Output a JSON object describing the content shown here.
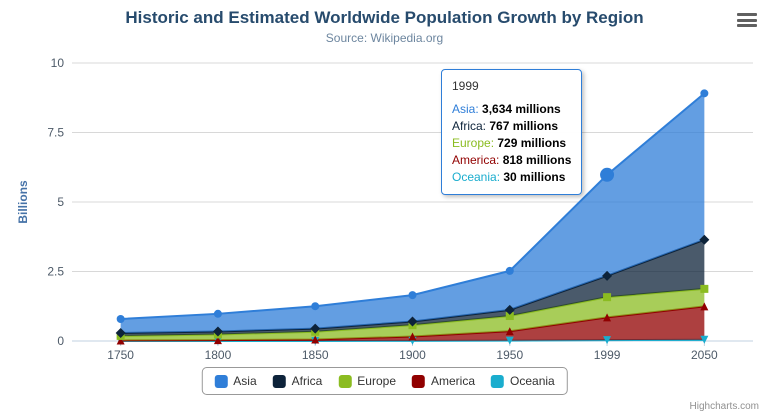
{
  "chart": {
    "title": "Historic and Estimated Worldwide Population Growth by Region",
    "subtitle": "Source: Wikipedia.org",
    "y_axis_title": "Billions",
    "credits": "Highcharts.com",
    "context_menu_icon": "hamburger-icon"
  },
  "tooltip": {
    "header": "1999",
    "rows": [
      {
        "name": "Asia",
        "value": "3,634 millions",
        "color": "#2f7ed8"
      },
      {
        "name": "Africa",
        "value": "767 millions",
        "color": "#0d233a"
      },
      {
        "name": "Europe",
        "value": "729 millions",
        "color": "#8bbc21"
      },
      {
        "name": "America",
        "value": "818 millions",
        "color": "#910000"
      },
      {
        "name": "Oceania",
        "value": "30 millions",
        "color": "#1aadce"
      }
    ]
  },
  "chart_data": {
    "type": "area",
    "stacked": true,
    "title": "Historic and Estimated Worldwide Population Growth by Region",
    "subtitle": "Source: Wikipedia.org",
    "xlabel": "",
    "ylabel": "Billions",
    "unit": "millions",
    "ylim": [
      0,
      10
    ],
    "y_ticks": [
      0,
      2.5,
      5,
      7.5,
      10
    ],
    "grid": true,
    "legend_position": "bottom",
    "categories": [
      "1750",
      "1800",
      "1850",
      "1900",
      "1950",
      "1999",
      "2050"
    ],
    "series": [
      {
        "name": "Asia",
        "color": "#2f7ed8",
        "marker": "circle",
        "values": [
          502,
          635,
          809,
          947,
          1402,
          3634,
          5268
        ]
      },
      {
        "name": "Africa",
        "color": "#0d233a",
        "marker": "diamond",
        "values": [
          106,
          107,
          111,
          133,
          221,
          767,
          1766
        ]
      },
      {
        "name": "Europe",
        "color": "#8bbc21",
        "marker": "square",
        "values": [
          163,
          203,
          276,
          408,
          547,
          729,
          628
        ]
      },
      {
        "name": "America",
        "color": "#910000",
        "marker": "triangle",
        "values": [
          18,
          31,
          54,
          156,
          339,
          818,
          1201
        ]
      },
      {
        "name": "Oceania",
        "color": "#1aadce",
        "marker": "triangle-down",
        "values": [
          2,
          2,
          2,
          6,
          13,
          30,
          46
        ]
      }
    ],
    "hover": {
      "series": "Asia",
      "category": "1999"
    }
  }
}
